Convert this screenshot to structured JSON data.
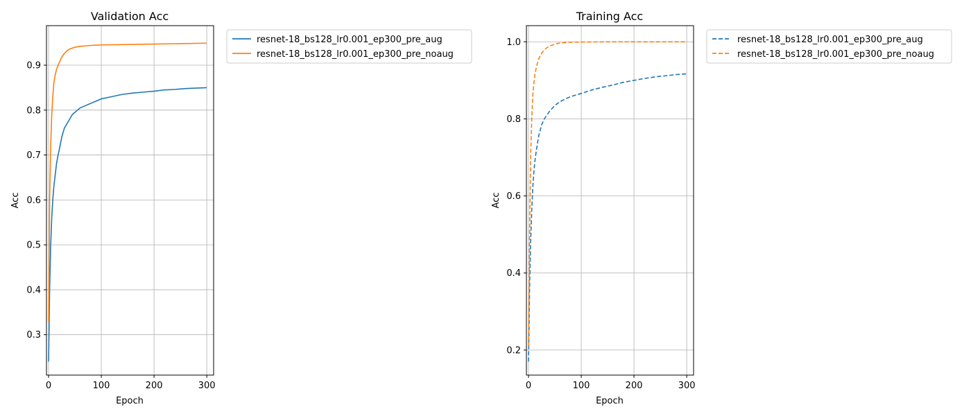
{
  "colors": {
    "aug": "#1f77b4",
    "noaug": "#ff7f0e",
    "grid": "#b0b0b0",
    "frame": "#000000"
  },
  "chart_data": [
    {
      "type": "line",
      "title": "Validation Acc",
      "xlabel": "Epoch",
      "ylabel": "Acc",
      "xlim": [
        -4,
        313
      ],
      "ylim": [
        0.21,
        0.988
      ],
      "xticks": [
        0,
        100,
        200,
        300
      ],
      "yticks": [
        0.3,
        0.4,
        0.5,
        0.6,
        0.7,
        0.8,
        0.9
      ],
      "grid": true,
      "legend_placement": "outside upper right",
      "line_style": "solid",
      "series": [
        {
          "name": "resnet-18_bs128_lr0.001_ep300_pre_aug",
          "color": "#1f77b4",
          "x": [
            0,
            2,
            4,
            6,
            8,
            10,
            12,
            15,
            18,
            20,
            25,
            30,
            35,
            40,
            45,
            50,
            60,
            70,
            80,
            90,
            100,
            120,
            140,
            160,
            180,
            200,
            220,
            240,
            260,
            280,
            300
          ],
          "y": [
            0.24,
            0.4,
            0.5,
            0.56,
            0.6,
            0.63,
            0.65,
            0.68,
            0.7,
            0.71,
            0.74,
            0.76,
            0.77,
            0.78,
            0.79,
            0.795,
            0.805,
            0.81,
            0.815,
            0.82,
            0.825,
            0.83,
            0.835,
            0.838,
            0.84,
            0.842,
            0.845,
            0.846,
            0.848,
            0.849,
            0.85
          ]
        },
        {
          "name": "resnet-18_bs128_lr0.001_ep300_pre_noaug",
          "color": "#ff7f0e",
          "x": [
            0,
            2,
            4,
            6,
            8,
            10,
            12,
            15,
            18,
            20,
            25,
            30,
            35,
            40,
            50,
            60,
            80,
            100,
            150,
            200,
            250,
            300
          ],
          "y": [
            0.33,
            0.6,
            0.72,
            0.79,
            0.83,
            0.86,
            0.875,
            0.89,
            0.9,
            0.905,
            0.918,
            0.926,
            0.932,
            0.936,
            0.94,
            0.942,
            0.944,
            0.945,
            0.946,
            0.947,
            0.948,
            0.949
          ]
        }
      ]
    },
    {
      "type": "line",
      "title": "Training Acc",
      "xlabel": "Epoch",
      "ylabel": "Acc",
      "xlim": [
        -4,
        313
      ],
      "ylim": [
        0.135,
        1.042
      ],
      "xticks": [
        0,
        100,
        200,
        300
      ],
      "yticks": [
        0.2,
        0.4,
        0.6,
        0.8,
        1.0
      ],
      "ytick_labels": [
        "0.2",
        "0.4",
        "0.6",
        "0.8",
        "1.0"
      ],
      "grid": true,
      "legend_placement": "outside upper right",
      "line_style": "dashed",
      "series": [
        {
          "name": "resnet-18_bs128_lr0.001_ep300_pre_aug",
          "color": "#1f77b4",
          "x": [
            0,
            2,
            4,
            6,
            8,
            10,
            12,
            15,
            18,
            20,
            25,
            30,
            35,
            40,
            50,
            60,
            70,
            80,
            90,
            100,
            120,
            140,
            160,
            180,
            200,
            220,
            240,
            260,
            280,
            300
          ],
          "y": [
            0.17,
            0.36,
            0.48,
            0.56,
            0.62,
            0.66,
            0.69,
            0.72,
            0.745,
            0.76,
            0.785,
            0.8,
            0.81,
            0.82,
            0.835,
            0.845,
            0.852,
            0.858,
            0.862,
            0.866,
            0.875,
            0.882,
            0.888,
            0.895,
            0.9,
            0.905,
            0.909,
            0.912,
            0.915,
            0.917
          ]
        },
        {
          "name": "resnet-18_bs128_lr0.001_ep300_pre_noaug",
          "color": "#ff7f0e",
          "x": [
            0,
            2,
            4,
            6,
            8,
            10,
            12,
            15,
            18,
            20,
            25,
            30,
            35,
            40,
            50,
            60,
            70,
            80,
            100,
            150,
            200,
            250,
            300
          ],
          "y": [
            0.21,
            0.5,
            0.7,
            0.8,
            0.86,
            0.89,
            0.915,
            0.935,
            0.95,
            0.958,
            0.971,
            0.979,
            0.985,
            0.989,
            0.994,
            0.997,
            0.998,
            0.999,
            0.9995,
            1.0,
            1.0,
            1.0,
            1.0
          ]
        }
      ]
    }
  ]
}
